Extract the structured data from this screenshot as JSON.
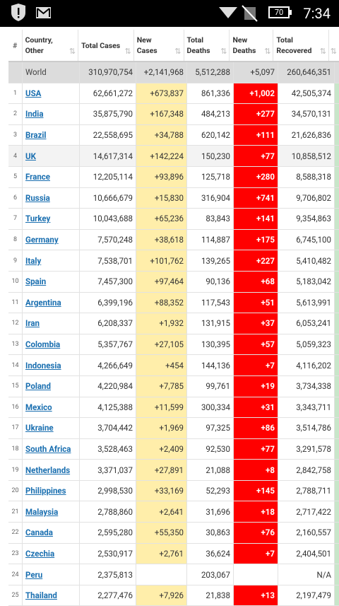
{
  "status_bar": {
    "battery": "70",
    "time": "7:34"
  },
  "table": {
    "headers": [
      "#",
      "Country, Other",
      "Total Cases",
      "New Cases",
      "Total Deaths",
      "New Deaths",
      "Total Recovered"
    ],
    "world": [
      null,
      "World",
      "310,970,754",
      "+2,141,968",
      "5,512,288",
      "+5,097",
      "260,646,351"
    ],
    "rows": [
      [
        "1",
        "USA",
        "62,661,272",
        "+673,837",
        "861,336",
        "+1,002",
        "42,505,374"
      ],
      [
        "2",
        "India",
        "35,875,790",
        "+167,348",
        "484,213",
        "+277",
        "34,570,131"
      ],
      [
        "3",
        "Brazil",
        "22,558,695",
        "+34,788",
        "620,142",
        "+111",
        "21,626,836"
      ],
      [
        "4",
        "UK",
        "14,617,314",
        "+142,224",
        "150,230",
        "+77",
        "10,858,512"
      ],
      [
        "5",
        "France",
        "12,205,114",
        "+93,896",
        "125,718",
        "+280",
        "8,588,318"
      ],
      [
        "6",
        "Russia",
        "10,666,679",
        "+15,830",
        "316,904",
        "+741",
        "9,706,802"
      ],
      [
        "7",
        "Turkey",
        "10,043,688",
        "+65,236",
        "83,843",
        "+141",
        "9,354,863"
      ],
      [
        "8",
        "Germany",
        "7,570,248",
        "+38,618",
        "114,887",
        "+175",
        "6,745,100"
      ],
      [
        "9",
        "Italy",
        "7,538,701",
        "+101,762",
        "139,265",
        "+227",
        "5,410,482"
      ],
      [
        "10",
        "Spain",
        "7,457,300",
        "+97,464",
        "90,136",
        "+68",
        "5,183,042"
      ],
      [
        "11",
        "Argentina",
        "6,399,196",
        "+88,352",
        "117,543",
        "+51",
        "5,613,991"
      ],
      [
        "12",
        "Iran",
        "6,208,337",
        "+1,932",
        "131,915",
        "+37",
        "6,053,241"
      ],
      [
        "13",
        "Colombia",
        "5,357,767",
        "+27,105",
        "130,395",
        "+57",
        "5,059,323"
      ],
      [
        "14",
        "Indonesia",
        "4,266,649",
        "+454",
        "144,136",
        "+7",
        "4,116,202"
      ],
      [
        "15",
        "Poland",
        "4,220,984",
        "+7,785",
        "99,761",
        "+19",
        "3,734,338"
      ],
      [
        "16",
        "Mexico",
        "4,125,388",
        "+11,599",
        "300,334",
        "+31",
        "3,343,711"
      ],
      [
        "17",
        "Ukraine",
        "3,704,442",
        "+1,969",
        "97,325",
        "+86",
        "3,514,786"
      ],
      [
        "18",
        "South Africa",
        "3,528,463",
        "+2,409",
        "92,530",
        "+77",
        "3,291,578"
      ],
      [
        "19",
        "Netherlands",
        "3,371,037",
        "+27,891",
        "21,088",
        "+8",
        "2,842,758"
      ],
      [
        "20",
        "Philippines",
        "2,998,530",
        "+33,169",
        "52,293",
        "+145",
        "2,788,711"
      ],
      [
        "21",
        "Malaysia",
        "2,788,860",
        "+2,641",
        "31,696",
        "+18",
        "2,717,422"
      ],
      [
        "22",
        "Canada",
        "2,595,280",
        "+55,350",
        "30,863",
        "+76",
        "2,160,557"
      ],
      [
        "23",
        "Czechia",
        "2,530,917",
        "+2,761",
        "36,624",
        "+7",
        "2,404,501"
      ],
      [
        "24",
        "Peru",
        "2,375,813",
        null,
        "203,067",
        null,
        "N/A"
      ],
      [
        "25",
        "Thailand",
        "2,277,476",
        "+7,926",
        "21,838",
        "+13",
        "2,197,479"
      ]
    ]
  }
}
